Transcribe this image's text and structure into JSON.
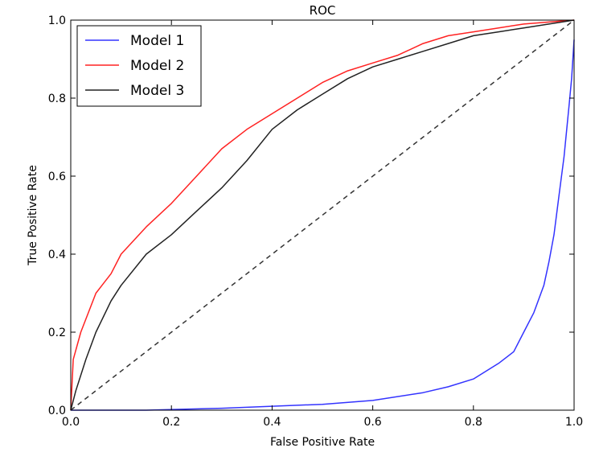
{
  "chart_data": {
    "type": "line",
    "title": "ROC",
    "xlabel": "False Positive Rate",
    "ylabel": "True Positive Rate",
    "xlim": [
      0.0,
      1.0
    ],
    "ylim": [
      0.0,
      1.0
    ],
    "xticks": [
      "0.0",
      "0.2",
      "0.4",
      "0.6",
      "0.8",
      "1.0"
    ],
    "yticks": [
      "0.0",
      "0.2",
      "0.4",
      "0.6",
      "0.8",
      "1.0"
    ],
    "grid": false,
    "legend": "top-left",
    "series": [
      {
        "name": "Model 1",
        "color": "#3333ff",
        "x": [
          0.0,
          0.15,
          0.3,
          0.4,
          0.5,
          0.6,
          0.7,
          0.75,
          0.8,
          0.85,
          0.88,
          0.9,
          0.92,
          0.94,
          0.95,
          0.96,
          0.97,
          0.98,
          0.99,
          0.995,
          1.0
        ],
        "y": [
          0.0,
          0.0,
          0.005,
          0.01,
          0.015,
          0.025,
          0.045,
          0.06,
          0.08,
          0.12,
          0.15,
          0.2,
          0.25,
          0.32,
          0.38,
          0.45,
          0.55,
          0.65,
          0.78,
          0.85,
          0.95
        ]
      },
      {
        "name": "Model 2",
        "color": "#ff2222",
        "x": [
          0.0,
          0.005,
          0.02,
          0.05,
          0.08,
          0.1,
          0.15,
          0.2,
          0.25,
          0.3,
          0.35,
          0.4,
          0.45,
          0.5,
          0.55,
          0.6,
          0.65,
          0.7,
          0.75,
          0.8,
          0.85,
          0.9,
          0.95,
          1.0
        ],
        "y": [
          0.0,
          0.13,
          0.2,
          0.3,
          0.35,
          0.4,
          0.47,
          0.53,
          0.6,
          0.67,
          0.72,
          0.76,
          0.8,
          0.84,
          0.87,
          0.89,
          0.91,
          0.94,
          0.96,
          0.97,
          0.98,
          0.99,
          0.995,
          1.0
        ]
      },
      {
        "name": "Model 3",
        "color": "#222222",
        "x": [
          0.0,
          0.01,
          0.03,
          0.05,
          0.08,
          0.1,
          0.15,
          0.2,
          0.25,
          0.3,
          0.35,
          0.4,
          0.45,
          0.5,
          0.55,
          0.6,
          0.65,
          0.7,
          0.75,
          0.8,
          0.85,
          0.9,
          0.95,
          1.0
        ],
        "y": [
          0.0,
          0.05,
          0.13,
          0.2,
          0.28,
          0.32,
          0.4,
          0.45,
          0.51,
          0.57,
          0.64,
          0.72,
          0.77,
          0.81,
          0.85,
          0.88,
          0.9,
          0.92,
          0.94,
          0.96,
          0.97,
          0.98,
          0.99,
          1.0
        ]
      }
    ],
    "reference_line": {
      "x": [
        0.0,
        1.0
      ],
      "y": [
        0.0,
        1.0
      ],
      "style": "dashed",
      "color": "#333333"
    }
  }
}
